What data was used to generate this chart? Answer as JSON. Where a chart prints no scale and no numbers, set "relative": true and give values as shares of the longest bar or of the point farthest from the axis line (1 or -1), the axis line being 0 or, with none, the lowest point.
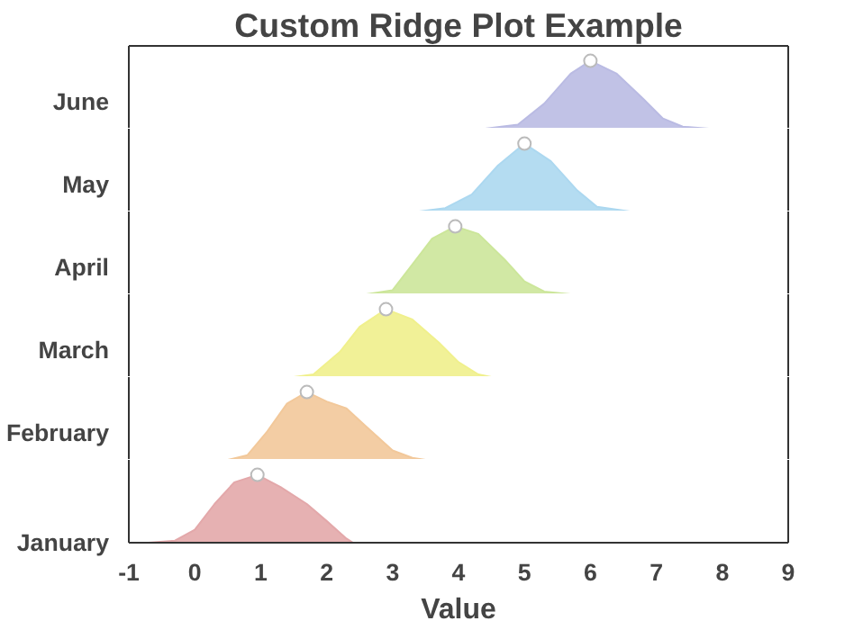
{
  "chart_data": [
    {
      "type": "area",
      "title": "Custom Ridge Plot Example",
      "ylabel": "June",
      "relative": true,
      "xlim": [
        -1,
        9
      ],
      "tick_labels": false,
      "grid": false,
      "series": [
        {
          "color": "#babbe3",
          "x": [
            4.4,
            4.9,
            5.3,
            5.7,
            6.0,
            6.4,
            6.8,
            7.1,
            7.4,
            7.8
          ],
          "values": [
            0,
            0.06,
            0.37,
            0.81,
            1,
            0.81,
            0.44,
            0.15,
            0.03,
            0
          ]
        },
        {
          "type": "scatter",
          "marker": "circle",
          "color": "#ffffff",
          "x": [
            6.0
          ],
          "values": [
            1
          ]
        }
      ]
    },
    {
      "type": "area",
      "ylabel": "May",
      "relative": true,
      "xlim": [
        -1,
        9
      ],
      "tick_labels": false,
      "grid": false,
      "series": [
        {
          "color": "#acd8f0",
          "x": [
            3.4,
            3.8,
            4.2,
            4.6,
            5.0,
            5.4,
            5.8,
            6.1,
            6.6
          ],
          "values": [
            0,
            0.05,
            0.25,
            0.68,
            1,
            0.74,
            0.31,
            0.07,
            0
          ]
        },
        {
          "type": "scatter",
          "marker": "circle",
          "color": "#ffffff",
          "x": [
            5.0
          ],
          "values": [
            1
          ]
        }
      ]
    },
    {
      "type": "area",
      "ylabel": "April",
      "relative": true,
      "xlim": [
        -1,
        9
      ],
      "tick_labels": false,
      "grid": false,
      "series": [
        {
          "color": "#cce69a",
          "x": [
            2.6,
            3.0,
            3.3,
            3.6,
            3.95,
            4.3,
            4.7,
            5.0,
            5.3,
            5.7
          ],
          "values": [
            0,
            0.06,
            0.44,
            0.82,
            1,
            0.89,
            0.51,
            0.19,
            0.04,
            0
          ]
        },
        {
          "type": "scatter",
          "marker": "circle",
          "color": "#ffffff",
          "x": [
            3.95
          ],
          "values": [
            1
          ]
        }
      ]
    },
    {
      "type": "area",
      "ylabel": "March",
      "relative": true,
      "xlim": [
        -1,
        9
      ],
      "tick_labels": false,
      "grid": false,
      "series": [
        {
          "color": "#f0f08c",
          "x": [
            1.5,
            1.8,
            2.2,
            2.5,
            2.9,
            3.3,
            3.7,
            4.0,
            4.3,
            4.5
          ],
          "values": [
            0,
            0.04,
            0.37,
            0.74,
            1,
            0.85,
            0.51,
            0.22,
            0.04,
            0
          ]
        },
        {
          "type": "scatter",
          "marker": "circle",
          "color": "#ffffff",
          "x": [
            2.9
          ],
          "values": [
            1
          ]
        }
      ]
    },
    {
      "type": "area",
      "ylabel": "February",
      "relative": true,
      "xlim": [
        -1,
        9
      ],
      "tick_labels": false,
      "grid": false,
      "series": [
        {
          "color": "#f2c89a",
          "x": [
            0.5,
            0.8,
            1.1,
            1.4,
            1.7,
            2.0,
            2.3,
            2.6,
            3.0,
            3.3,
            3.5
          ],
          "values": [
            0,
            0.07,
            0.42,
            0.83,
            1,
            0.86,
            0.76,
            0.49,
            0.14,
            0.03,
            0
          ]
        },
        {
          "type": "scatter",
          "marker": "circle",
          "color": "#ffffff",
          "x": [
            1.7
          ],
          "values": [
            1
          ]
        }
      ]
    },
    {
      "type": "area",
      "ylabel": "January",
      "xlabel": "Value",
      "relative": true,
      "xlim": [
        -1,
        9
      ],
      "xticks": [
        -1,
        0,
        1,
        2,
        3,
        4,
        5,
        6,
        7,
        8,
        9
      ],
      "tick_labels": "x",
      "grid": false,
      "series": [
        {
          "color": "#e3a8aa",
          "x": [
            -0.7,
            -0.3,
            0,
            0.3,
            0.6,
            0.95,
            1.3,
            1.7,
            2.0,
            2.3,
            2.4
          ],
          "values": [
            0,
            0.03,
            0.19,
            0.57,
            0.89,
            1,
            0.82,
            0.57,
            0.32,
            0.06,
            0
          ]
        },
        {
          "type": "scatter",
          "marker": "circle",
          "color": "#ffffff",
          "x": [
            0.95
          ],
          "values": [
            1
          ]
        }
      ]
    }
  ]
}
